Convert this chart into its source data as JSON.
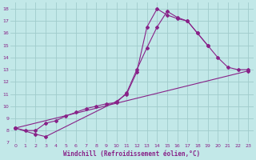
{
  "xlabel": "Windchill (Refroidissement éolien,°C)",
  "bg_color": "#c2e8e8",
  "grid_color": "#a0cccc",
  "line_color": "#882288",
  "xlim": [
    -0.5,
    23.5
  ],
  "ylim": [
    7,
    18.5
  ],
  "xticks": [
    0,
    1,
    2,
    3,
    4,
    5,
    6,
    7,
    8,
    9,
    10,
    11,
    12,
    13,
    14,
    15,
    16,
    17,
    18,
    19,
    20,
    21,
    22,
    23
  ],
  "yticks": [
    7,
    8,
    9,
    10,
    11,
    12,
    13,
    14,
    15,
    16,
    17,
    18
  ],
  "line1_x": [
    0,
    1,
    2,
    3,
    4,
    5,
    6,
    7,
    8,
    9,
    10,
    11,
    12,
    13,
    14,
    15,
    16,
    17,
    18,
    19,
    20,
    21,
    22,
    23
  ],
  "line1_y": [
    8.2,
    8.0,
    8.0,
    8.6,
    8.8,
    9.2,
    9.5,
    9.8,
    10.0,
    10.2,
    10.3,
    11.1,
    13.0,
    14.8,
    16.5,
    17.8,
    17.3,
    17.0,
    16.0,
    15.0,
    14.0,
    13.2,
    13.0,
    13.0
  ],
  "line2_x": [
    0,
    2,
    3,
    10,
    11,
    12,
    13,
    14,
    15,
    16,
    17,
    18,
    19,
    20,
    21,
    22,
    23
  ],
  "line2_y": [
    8.2,
    7.7,
    7.5,
    10.4,
    11.0,
    12.8,
    16.5,
    18.0,
    17.5,
    17.2,
    17.0,
    16.0,
    15.0,
    null,
    null,
    null,
    null
  ],
  "line3_x": [
    0,
    23
  ],
  "line3_y": [
    8.2,
    12.9
  ]
}
